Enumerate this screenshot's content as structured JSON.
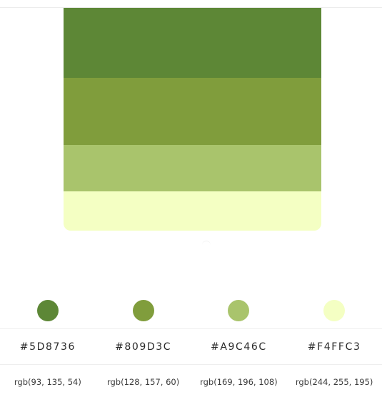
{
  "palette": {
    "colors": [
      {
        "hex": "#5D8736",
        "rgb": "rgb(93, 135, 54)",
        "value": "#5D8736"
      },
      {
        "hex": "#809D3C",
        "rgb": "rgb(128, 157, 60)",
        "value": "#809D3C"
      },
      {
        "hex": "#A9C46C",
        "rgb": "rgb(169, 196, 108)",
        "value": "#A9C46C"
      },
      {
        "hex": "#F4FFC3",
        "rgb": "rgb(244, 255, 195)",
        "value": "#F4FFC3"
      }
    ]
  }
}
